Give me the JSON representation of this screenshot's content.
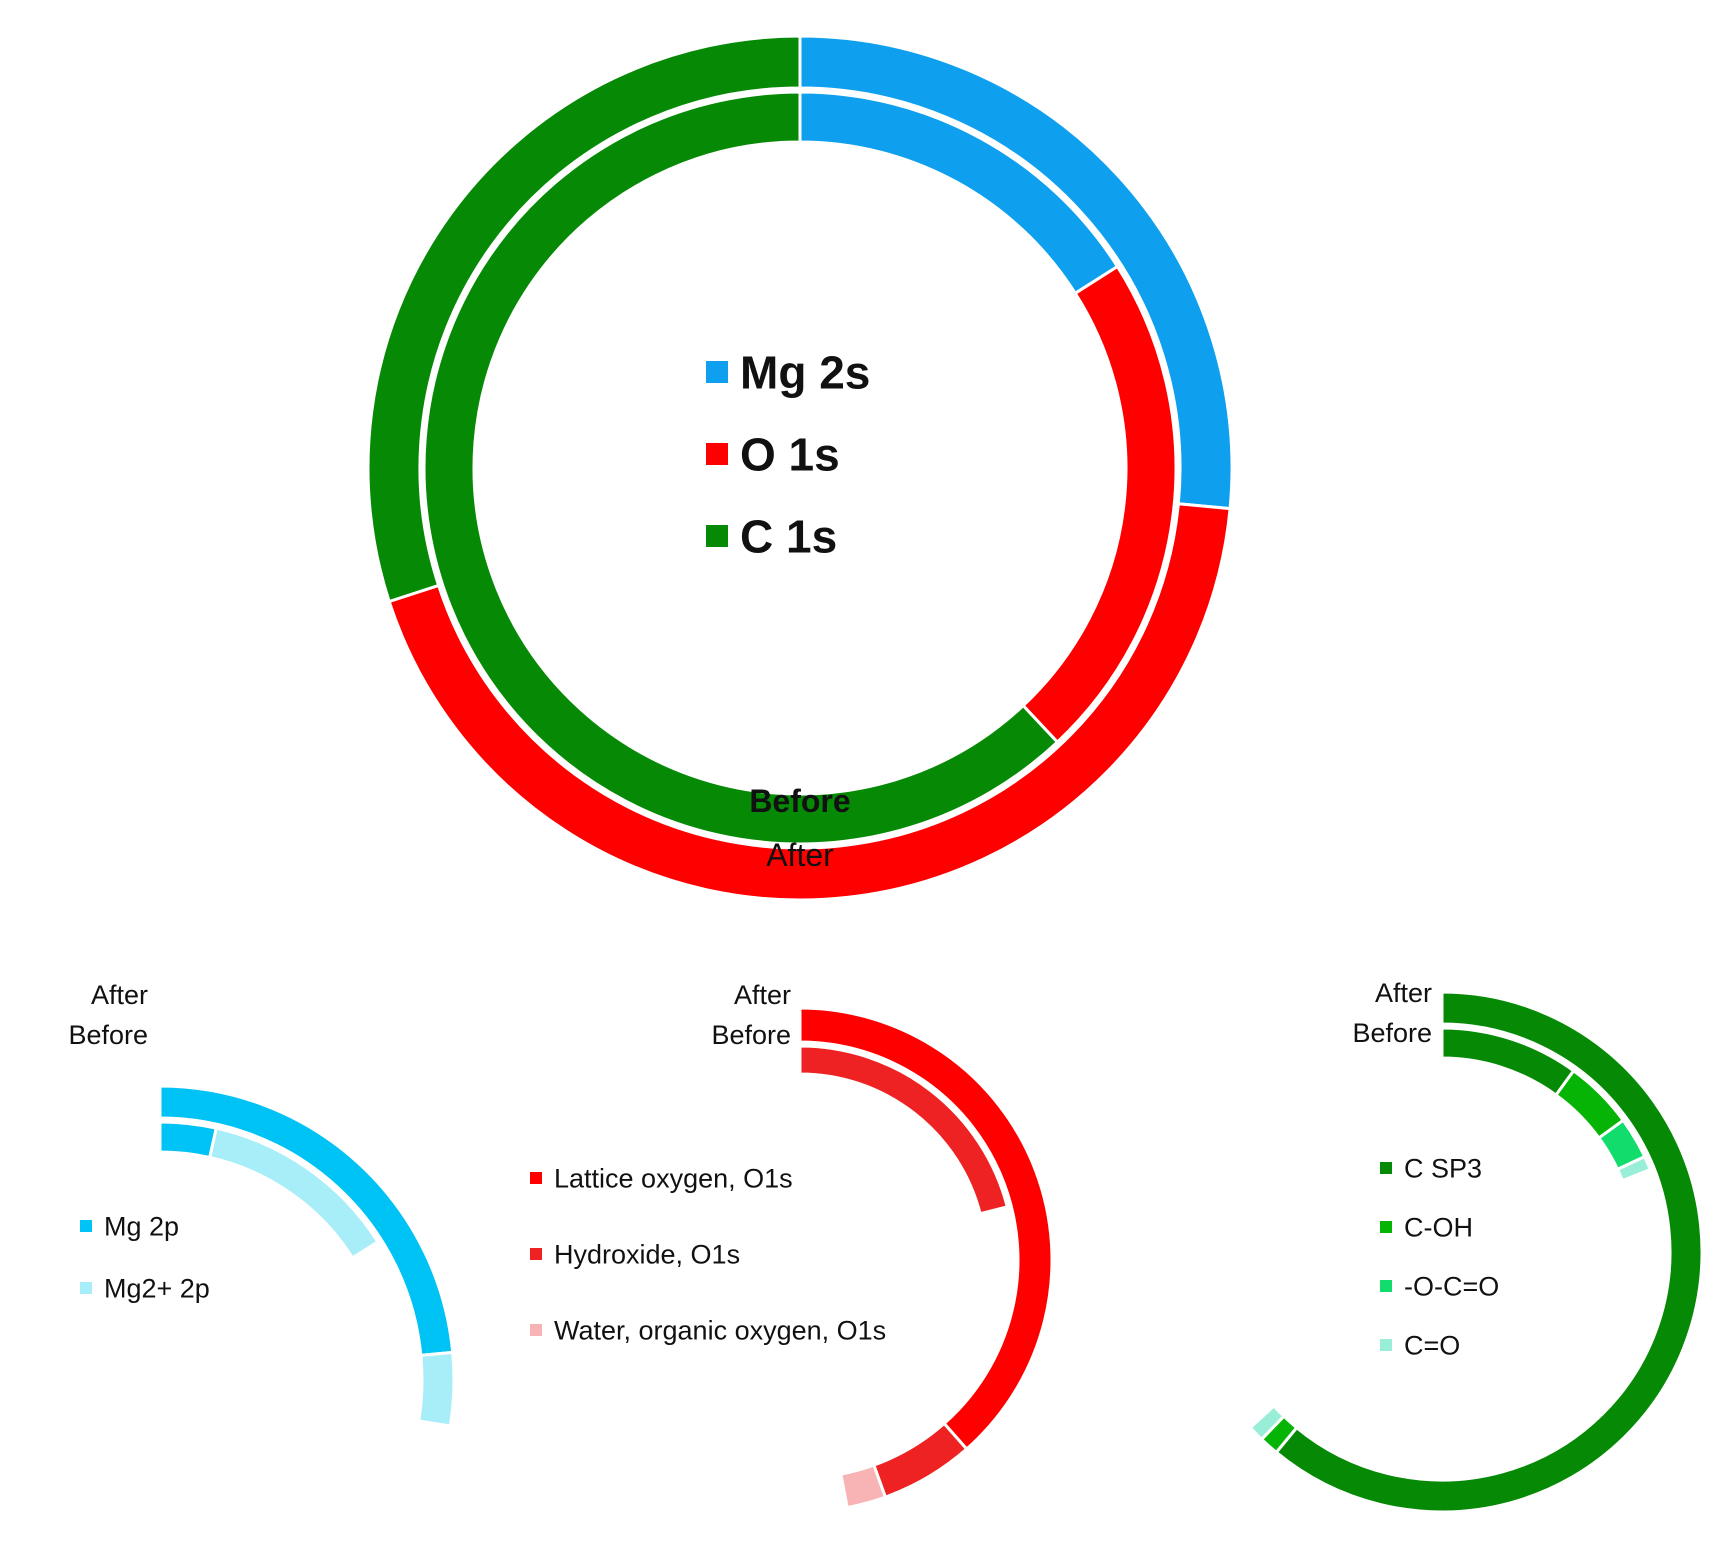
{
  "chart_data": [
    {
      "id": "main",
      "type": "donut",
      "legend": [
        {
          "label": "Mg 2s",
          "color": "#0ea0ee"
        },
        {
          "label": "O 1s",
          "color": "#ff0000"
        },
        {
          "label": "C 1s",
          "color": "#068a06"
        }
      ],
      "rings": [
        {
          "label": "After",
          "slices": [
            {
              "category": "Mg 2s",
              "value": 26.5,
              "color": "#0ea0ee"
            },
            {
              "category": "O 1s",
              "value": 43.5,
              "color": "#ff0000"
            },
            {
              "category": "C 1s",
              "value": 30.0,
              "color": "#068a06"
            }
          ]
        },
        {
          "label": "Before",
          "slices": [
            {
              "category": "Mg 2s",
              "value": 16.0,
              "color": "#0ea0ee"
            },
            {
              "category": "O 1s",
              "value": 22.0,
              "color": "#ff0000"
            },
            {
              "category": "C 1s",
              "value": 62.0,
              "color": "#068a06"
            }
          ]
        }
      ]
    },
    {
      "id": "mg",
      "type": "donut",
      "legend": [
        {
          "label": "Mg 2p",
          "color": "#00c3f5"
        },
        {
          "label": "Mg2+ 2p",
          "color": "#a8eef8"
        }
      ],
      "rings": [
        {
          "label": "After",
          "slices": [
            {
              "category": "Mg 2p",
              "value": 23.5,
              "color": "#00c3f5"
            },
            {
              "category": "Mg2+ 2p",
              "value": 4.0,
              "color": "#a8eef8"
            }
          ]
        },
        {
          "label": "Before",
          "slices": [
            {
              "category": "Mg 2p",
              "value": 3.5,
              "color": "#00c3f5"
            },
            {
              "category": "Mg2+ 2p",
              "value": 12.5,
              "color": "#a8eef8"
            }
          ]
        }
      ]
    },
    {
      "id": "o",
      "type": "donut",
      "legend": [
        {
          "label": "Lattice oxygen, O1s",
          "color": "#ff0000"
        },
        {
          "label": "Hydroxide, O1s",
          "color": "#ee2222"
        },
        {
          "label": "Water, organic oxygen, O1s",
          "color": "#f8b4b4"
        }
      ],
      "rings": [
        {
          "label": "After",
          "slices": [
            {
              "category": "Lattice oxygen, O1s",
              "value": 38.5,
              "color": "#ff0000"
            },
            {
              "category": "Hydroxide, O1s",
              "value": 6.0,
              "color": "#ee2222"
            },
            {
              "category": "Water, organic oxygen, O1s",
              "value": 2.5,
              "color": "#f8b4b4"
            }
          ]
        },
        {
          "label": "Before",
          "slices": [
            {
              "category": "Lattice oxygen, O1s",
              "value": 0.0,
              "color": "#ff0000"
            },
            {
              "category": "Hydroxide, O1s",
              "value": 21.0,
              "color": "#ee2222"
            },
            {
              "category": "Water, organic oxygen, O1s",
              "value": 0.0,
              "color": "#f8b4b4"
            }
          ]
        }
      ]
    },
    {
      "id": "c",
      "type": "donut",
      "legend": [
        {
          "label": "C SP3",
          "color": "#068a06"
        },
        {
          "label": "C-OH",
          "color": "#05b405"
        },
        {
          "label": "-O-C=O",
          "color": "#12dd6c"
        },
        {
          "label": "C=O",
          "color": "#99eed8"
        }
      ],
      "rings": [
        {
          "label": "After",
          "slices": [
            {
              "category": "C SP3",
              "value": 61.0,
              "color": "#068a06"
            },
            {
              "category": "C-OH",
              "value": 1.2,
              "color": "#05b405"
            },
            {
              "category": "-O-C=O",
              "value": 0.0,
              "color": "#12dd6c"
            },
            {
              "category": "C=O",
              "value": 1.0,
              "color": "#99eed8"
            }
          ]
        },
        {
          "label": "Before",
          "slices": [
            {
              "category": "C SP3",
              "value": 10.0,
              "color": "#068a06"
            },
            {
              "category": "C-OH",
              "value": 5.0,
              "color": "#05b405"
            },
            {
              "category": "-O-C=O",
              "value": 3.0,
              "color": "#12dd6c"
            },
            {
              "category": "C=O",
              "value": 1.0,
              "color": "#99eed8"
            }
          ]
        }
      ]
    }
  ]
}
